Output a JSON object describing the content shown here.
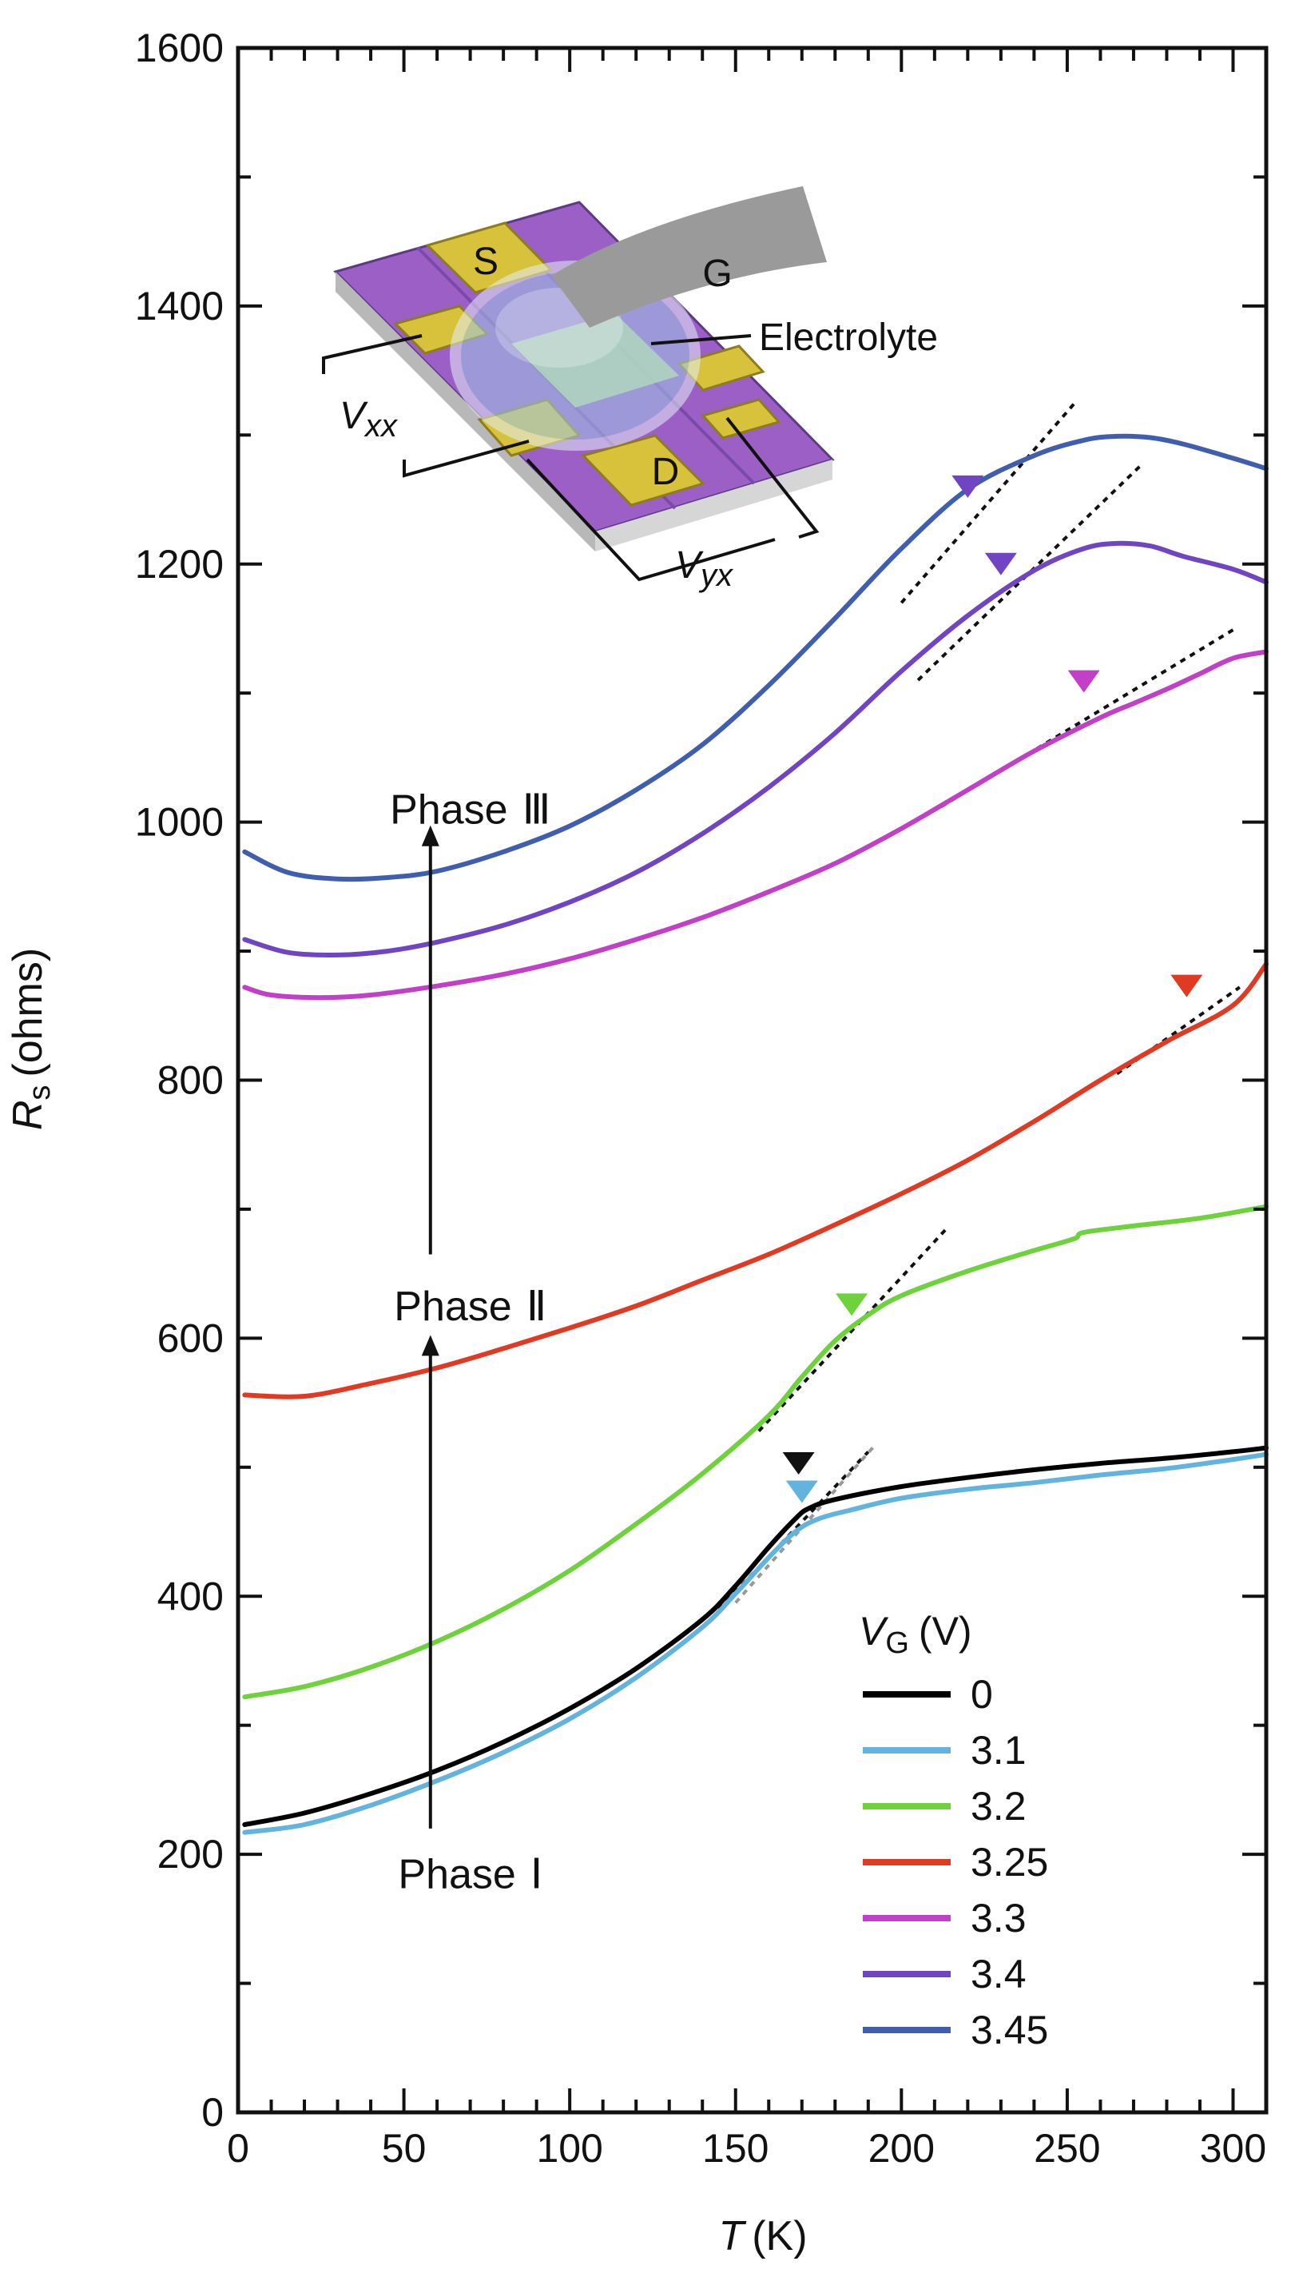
{
  "chart_data": {
    "type": "line",
    "title": "",
    "xlabel": {
      "symbol": "T",
      "unit": "(K)"
    },
    "ylabel": {
      "symbol": "R",
      "subscript": "s",
      "unit": "(ohms)"
    },
    "xlim": [
      0,
      310
    ],
    "ylim": [
      0,
      1600
    ],
    "x_ticks": [
      0,
      50,
      100,
      150,
      200,
      250,
      300
    ],
    "y_ticks": [
      0,
      200,
      400,
      600,
      800,
      1000,
      1200,
      1400,
      1600
    ],
    "grid": false,
    "legend": {
      "title_symbol": "V",
      "title_subscript": "G",
      "title_unit": "(V)",
      "placement": "bottom-right"
    },
    "series": [
      {
        "name": "0",
        "color": "#000000",
        "x": [
          2,
          20,
          40,
          60,
          80,
          100,
          120,
          140,
          150,
          160,
          168,
          172,
          180,
          200,
          220,
          240,
          260,
          280,
          300,
          310
        ],
        "y": [
          223,
          232,
          247,
          265,
          287,
          313,
          344,
          382,
          408,
          438,
          460,
          468,
          475,
          485,
          492,
          498,
          503,
          507,
          512,
          515
        ]
      },
      {
        "name": "3.1",
        "color": "#62b3de",
        "x": [
          2,
          20,
          40,
          60,
          80,
          100,
          120,
          140,
          150,
          160,
          168,
          175,
          185,
          200,
          220,
          240,
          260,
          280,
          300,
          310
        ],
        "y": [
          217,
          223,
          238,
          257,
          279,
          305,
          337,
          376,
          402,
          430,
          450,
          460,
          467,
          476,
          483,
          488,
          494,
          499,
          506,
          510
        ]
      },
      {
        "name": "3.2",
        "color": "#6dd23c",
        "x": [
          2,
          20,
          40,
          60,
          80,
          100,
          120,
          140,
          160,
          170,
          180,
          190,
          200,
          220,
          240,
          252,
          255,
          270,
          290,
          310
        ],
        "y": [
          322,
          330,
          345,
          365,
          390,
          420,
          456,
          495,
          540,
          570,
          598,
          618,
          633,
          652,
          668,
          677,
          682,
          687,
          693,
          702
        ]
      },
      {
        "name": "3.25",
        "color": "#e03a23",
        "x": [
          2,
          20,
          40,
          60,
          80,
          100,
          120,
          140,
          160,
          180,
          200,
          220,
          240,
          260,
          280,
          300,
          310
        ],
        "y": [
          556,
          555,
          565,
          577,
          592,
          608,
          625,
          645,
          665,
          688,
          712,
          738,
          768,
          800,
          830,
          858,
          890
        ]
      },
      {
        "name": "3.3",
        "color": "#c240c8",
        "x": [
          2,
          10,
          25,
          40,
          60,
          80,
          100,
          120,
          140,
          160,
          180,
          200,
          220,
          240,
          260,
          270,
          280,
          290,
          300,
          310
        ],
        "y": [
          872,
          866,
          864,
          866,
          873,
          882,
          894,
          909,
          926,
          946,
          968,
          995,
          1025,
          1055,
          1081,
          1092,
          1103,
          1115,
          1127,
          1132
        ]
      },
      {
        "name": "3.4",
        "color": "#7044c2",
        "x": [
          2,
          15,
          30,
          45,
          60,
          80,
          100,
          120,
          140,
          160,
          180,
          200,
          220,
          240,
          255,
          265,
          275,
          285,
          300,
          310
        ],
        "y": [
          909,
          899,
          897,
          900,
          907,
          920,
          938,
          961,
          991,
          1027,
          1069,
          1117,
          1160,
          1195,
          1212,
          1216,
          1214,
          1206,
          1196,
          1186
        ]
      },
      {
        "name": "3.45",
        "color": "#3f5eaf",
        "x": [
          2,
          15,
          30,
          45,
          60,
          80,
          100,
          120,
          140,
          160,
          180,
          200,
          220,
          240,
          255,
          265,
          275,
          285,
          300,
          310
        ],
        "y": [
          977,
          961,
          956,
          957,
          962,
          977,
          997,
          1025,
          1060,
          1106,
          1158,
          1212,
          1258,
          1284,
          1296,
          1299,
          1298,
          1293,
          1282,
          1274
        ]
      }
    ],
    "fits": [
      {
        "color": "#111111",
        "x": [
          145,
          190
        ],
        "y": [
          390,
          512
        ]
      },
      {
        "color": "#999999",
        "x": [
          150,
          192
        ],
        "y": [
          395,
          517
        ]
      },
      {
        "color": "#111111",
        "x": [
          157,
          214
        ],
        "y": [
          528,
          686
        ]
      },
      {
        "color": "#111111",
        "x": [
          265,
          302
        ],
        "y": [
          805,
          872
        ]
      },
      {
        "color": "#111111",
        "x": [
          212,
          300
        ],
        "y": [
          1012,
          1149
        ]
      },
      {
        "color": "#111111",
        "x": [
          205,
          272
        ],
        "y": [
          1110,
          1276
        ]
      },
      {
        "color": "#111111",
        "x": [
          200,
          253
        ],
        "y": [
          1170,
          1327
        ]
      }
    ],
    "markers": [
      {
        "x": 169,
        "y": 503,
        "color": "#111111"
      },
      {
        "x": 170,
        "y": 481,
        "color": "#62b3de"
      },
      {
        "x": 185,
        "y": 626,
        "color": "#6dd23c"
      },
      {
        "x": 286,
        "y": 873,
        "color": "#e03a23"
      },
      {
        "x": 255,
        "y": 1109,
        "color": "#c240c8"
      },
      {
        "x": 230,
        "y": 1200,
        "color": "#7044c2"
      },
      {
        "x": 220,
        "y": 1260,
        "color": "#7044c2"
      }
    ],
    "annotations": {
      "phase_1": {
        "label": "Phase",
        "numeral": "Ⅰ",
        "x": 58,
        "y": 185
      },
      "phase_2": {
        "label": "Phase",
        "numeral": "Ⅱ",
        "x": 58,
        "y": 625
      },
      "phase_3": {
        "label": "Phase",
        "numeral": "Ⅲ",
        "x": 58,
        "y": 1010
      },
      "arrows": [
        {
          "x": 58,
          "y_from": 220,
          "y_to": 600
        },
        {
          "x": 58,
          "y_from": 665,
          "y_to": 995
        }
      ]
    },
    "inset": {
      "source_label": "S",
      "drain_label": "D",
      "gate_label": "G",
      "electrolyte_label": "Electrolyte",
      "vxx": {
        "symbol": "V",
        "subscript": "xx"
      },
      "vyx": {
        "symbol": "V",
        "subscript": "yx"
      },
      "colors": {
        "substrate": "#9b5fc6",
        "contact": "#d8c23c",
        "gate": "#999999",
        "electrolyte": "#9fc9ea",
        "base": "#c8c8c8"
      }
    }
  }
}
